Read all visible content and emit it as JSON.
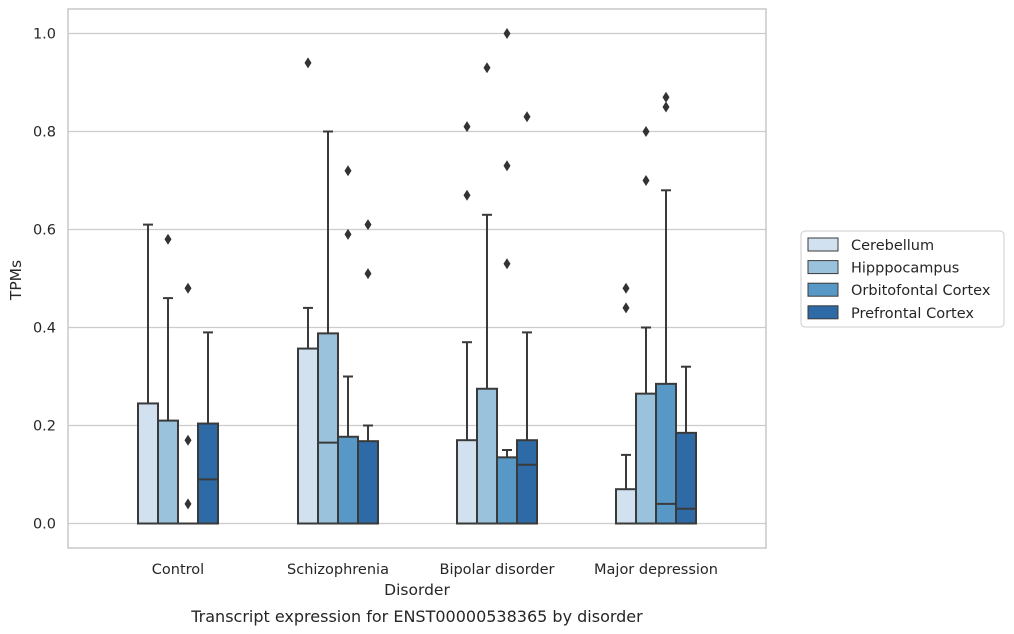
{
  "chart_data": {
    "type": "box",
    "caption": "Transcript expression for ENST00000538365 by disorder",
    "xlabel": "Disorder",
    "ylabel": "TPMs",
    "categories": [
      "Control",
      "Schizophrenia",
      "Bipolar disorder",
      "Major depression"
    ],
    "ylim": [
      -0.05,
      1.05
    ],
    "yticks": [
      "0.0",
      "0.2",
      "0.4",
      "0.6",
      "0.8",
      "1.0"
    ],
    "ytick_values": [
      0.0,
      0.2,
      0.4,
      0.6,
      0.8,
      1.0
    ],
    "grid": "horizontal",
    "legend_position": "right",
    "series": [
      {
        "name": "Cerebellum",
        "color": "#d2e1f0",
        "boxes": [
          {
            "q1": 0.0,
            "median": 0.0,
            "q3": 0.245,
            "whisker_low": 0.0,
            "whisker_high": 0.61,
            "outliers": []
          },
          {
            "q1": 0.0,
            "median": 0.0,
            "q3": 0.357,
            "whisker_low": 0.0,
            "whisker_high": 0.44,
            "outliers": [
              0.94
            ]
          },
          {
            "q1": 0.0,
            "median": 0.0,
            "q3": 0.17,
            "whisker_low": 0.0,
            "whisker_high": 0.37,
            "outliers": [
              0.67,
              0.81
            ]
          },
          {
            "q1": 0.0,
            "median": 0.0,
            "q3": 0.07,
            "whisker_low": 0.0,
            "whisker_high": 0.14,
            "outliers": [
              0.44,
              0.48
            ]
          }
        ]
      },
      {
        "name": "Hipppocampus",
        "color": "#9ac2dc",
        "boxes": [
          {
            "q1": 0.0,
            "median": 0.0,
            "q3": 0.21,
            "whisker_low": 0.0,
            "whisker_high": 0.46,
            "outliers": [
              0.58
            ]
          },
          {
            "q1": 0.0,
            "median": 0.165,
            "q3": 0.388,
            "whisker_low": 0.0,
            "whisker_high": 0.8,
            "outliers": []
          },
          {
            "q1": 0.0,
            "median": 0.0,
            "q3": 0.275,
            "whisker_low": 0.0,
            "whisker_high": 0.63,
            "outliers": [
              0.93
            ]
          },
          {
            "q1": 0.0,
            "median": 0.0,
            "q3": 0.265,
            "whisker_low": 0.0,
            "whisker_high": 0.4,
            "outliers": [
              0.7,
              0.8
            ]
          }
        ]
      },
      {
        "name": "Orbitofontal Cortex",
        "color": "#5898c6",
        "boxes": [
          {
            "q1": 0.0,
            "median": 0.0,
            "q3": 0.0,
            "whisker_low": 0.0,
            "whisker_high": 0.0,
            "outliers": [
              0.04,
              0.17,
              0.48
            ]
          },
          {
            "q1": 0.0,
            "median": 0.0,
            "q3": 0.177,
            "whisker_low": 0.0,
            "whisker_high": 0.3,
            "outliers": [
              0.59,
              0.72
            ]
          },
          {
            "q1": 0.0,
            "median": 0.0,
            "q3": 0.135,
            "whisker_low": 0.0,
            "whisker_high": 0.15,
            "outliers": [
              0.53,
              0.73,
              1.0
            ]
          },
          {
            "q1": 0.0,
            "median": 0.04,
            "q3": 0.285,
            "whisker_low": 0.0,
            "whisker_high": 0.68,
            "outliers": [
              0.85,
              0.87
            ]
          }
        ]
      },
      {
        "name": "Prefrontal Cortex",
        "color": "#2d6aa6",
        "boxes": [
          {
            "q1": 0.0,
            "median": 0.09,
            "q3": 0.204,
            "whisker_low": 0.0,
            "whisker_high": 0.39,
            "outliers": []
          },
          {
            "q1": 0.0,
            "median": 0.0,
            "q3": 0.168,
            "whisker_low": 0.0,
            "whisker_high": 0.2,
            "outliers": [
              0.51,
              0.61
            ]
          },
          {
            "q1": 0.0,
            "median": 0.12,
            "q3": 0.17,
            "whisker_low": 0.0,
            "whisker_high": 0.39,
            "outliers": [
              0.83
            ]
          },
          {
            "q1": 0.0,
            "median": 0.03,
            "q3": 0.185,
            "whisker_low": 0.0,
            "whisker_high": 0.32,
            "outliers": []
          }
        ]
      }
    ]
  }
}
